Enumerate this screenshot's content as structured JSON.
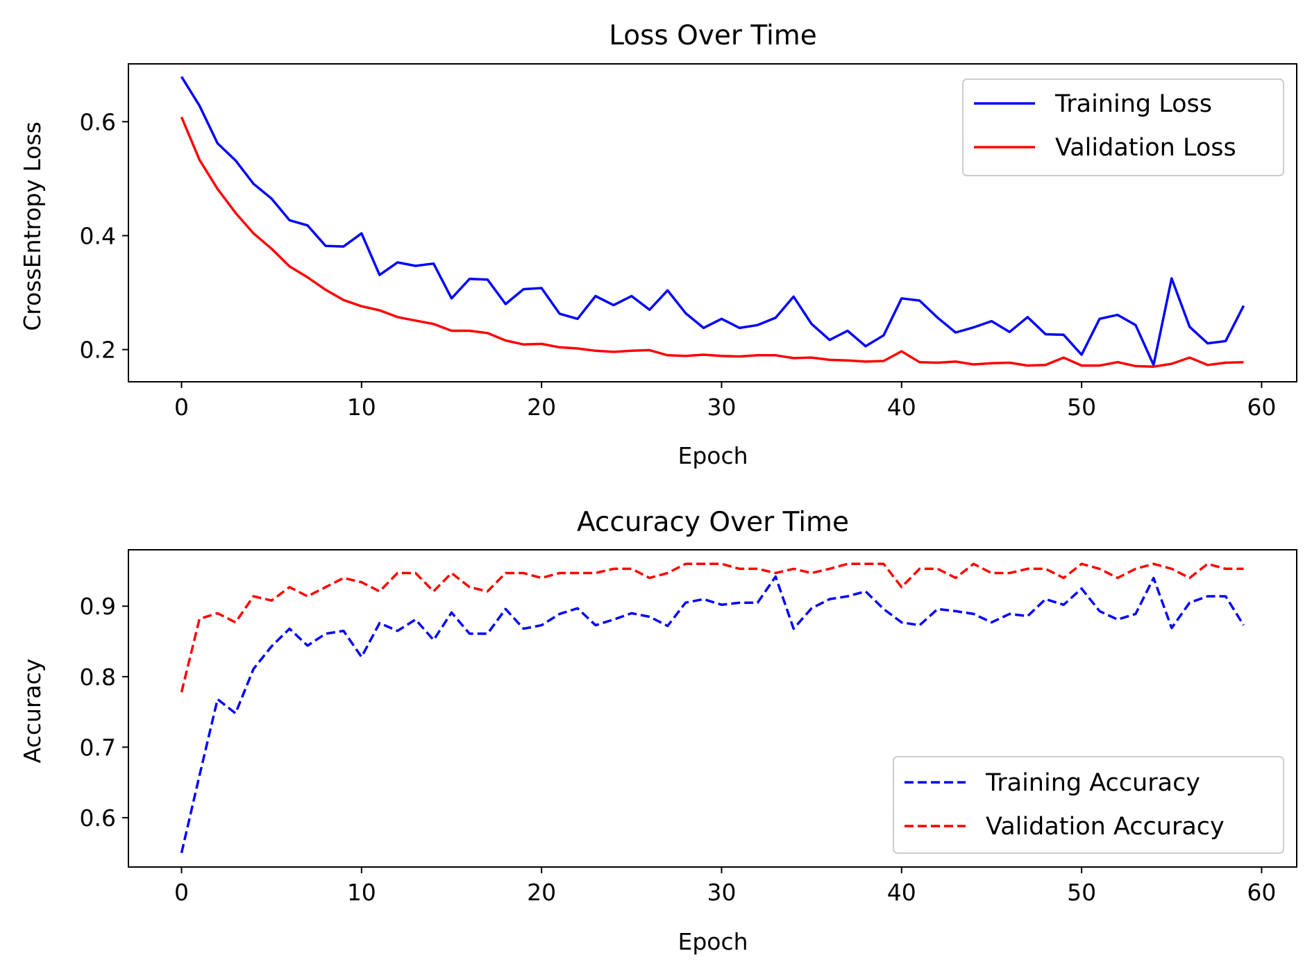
{
  "colors": {
    "training": "#0000ff",
    "validation": "#ff0000",
    "axes": "#000000",
    "legend_border": "#cccccc"
  },
  "chart_data": [
    {
      "type": "line",
      "title": "Loss Over Time",
      "xlabel": "Epoch",
      "ylabel": "CrossEntropy Loss",
      "xlim": [
        -2.95,
        61.95
      ],
      "ylim": [
        0.1435,
        0.7015
      ],
      "xticks": [
        0,
        10,
        20,
        30,
        40,
        50,
        60
      ],
      "xtick_labels": [
        "0",
        "10",
        "20",
        "30",
        "40",
        "50",
        "60"
      ],
      "yticks": [
        0.2,
        0.4,
        0.6
      ],
      "ytick_labels": [
        "0.2",
        "0.4",
        "0.6"
      ],
      "grid": false,
      "legend_position": "upper-right",
      "x": [
        0,
        1,
        2,
        3,
        4,
        5,
        6,
        7,
        8,
        9,
        10,
        11,
        12,
        13,
        14,
        15,
        16,
        17,
        18,
        19,
        20,
        21,
        22,
        23,
        24,
        25,
        26,
        27,
        28,
        29,
        30,
        31,
        32,
        33,
        34,
        35,
        36,
        37,
        38,
        39,
        40,
        41,
        42,
        43,
        44,
        45,
        46,
        47,
        48,
        49,
        50,
        51,
        52,
        53,
        54,
        55,
        56,
        57,
        58,
        59
      ],
      "series": [
        {
          "name": "Training Loss",
          "color": "#0000ff",
          "dash": "solid",
          "values": [
            0.679,
            0.628,
            0.562,
            0.532,
            0.491,
            0.465,
            0.427,
            0.418,
            0.382,
            0.381,
            0.404,
            0.331,
            0.353,
            0.347,
            0.351,
            0.29,
            0.324,
            0.323,
            0.28,
            0.306,
            0.308,
            0.263,
            0.254,
            0.294,
            0.278,
            0.294,
            0.27,
            0.304,
            0.264,
            0.238,
            0.254,
            0.238,
            0.243,
            0.256,
            0.293,
            0.245,
            0.217,
            0.233,
            0.206,
            0.225,
            0.29,
            0.286,
            0.256,
            0.23,
            0.239,
            0.25,
            0.231,
            0.257,
            0.227,
            0.226,
            0.191,
            0.254,
            0.261,
            0.243,
            0.173,
            0.325,
            0.24,
            0.211,
            0.215,
            0.277
          ]
        },
        {
          "name": "Validation Loss",
          "color": "#ff0000",
          "dash": "solid",
          "values": [
            0.608,
            0.533,
            0.482,
            0.44,
            0.404,
            0.377,
            0.346,
            0.327,
            0.305,
            0.287,
            0.276,
            0.269,
            0.257,
            0.251,
            0.245,
            0.233,
            0.233,
            0.229,
            0.216,
            0.209,
            0.21,
            0.204,
            0.202,
            0.198,
            0.196,
            0.198,
            0.199,
            0.19,
            0.189,
            0.191,
            0.189,
            0.188,
            0.19,
            0.19,
            0.185,
            0.186,
            0.182,
            0.181,
            0.179,
            0.18,
            0.197,
            0.178,
            0.177,
            0.179,
            0.174,
            0.176,
            0.177,
            0.172,
            0.173,
            0.186,
            0.172,
            0.172,
            0.178,
            0.171,
            0.17,
            0.175,
            0.186,
            0.173,
            0.177,
            0.178
          ]
        }
      ]
    },
    {
      "type": "line",
      "title": "Accuracy Over Time",
      "xlabel": "Epoch",
      "ylabel": "Accuracy",
      "xlim": [
        -2.95,
        61.95
      ],
      "ylim": [
        0.53,
        0.98
      ],
      "xticks": [
        0,
        10,
        20,
        30,
        40,
        50,
        60
      ],
      "xtick_labels": [
        "0",
        "10",
        "20",
        "30",
        "40",
        "50",
        "60"
      ],
      "yticks": [
        0.6,
        0.7,
        0.8,
        0.9
      ],
      "ytick_labels": [
        "0.6",
        "0.7",
        "0.8",
        "0.9"
      ],
      "grid": false,
      "legend_position": "lower-right",
      "x": [
        0,
        1,
        2,
        3,
        4,
        5,
        6,
        7,
        8,
        9,
        10,
        11,
        12,
        13,
        14,
        15,
        16,
        17,
        18,
        19,
        20,
        21,
        22,
        23,
        24,
        25,
        26,
        27,
        28,
        29,
        30,
        31,
        32,
        33,
        34,
        35,
        36,
        37,
        38,
        39,
        40,
        41,
        42,
        43,
        44,
        45,
        46,
        47,
        48,
        49,
        50,
        51,
        52,
        53,
        54,
        55,
        56,
        57,
        58,
        59
      ],
      "series": [
        {
          "name": "Training Accuracy",
          "color": "#0000ff",
          "dash": "dashed",
          "values": [
            0.55,
            0.66,
            0.768,
            0.748,
            0.811,
            0.843,
            0.868,
            0.844,
            0.861,
            0.865,
            0.828,
            0.876,
            0.865,
            0.881,
            0.852,
            0.891,
            0.861,
            0.861,
            0.896,
            0.868,
            0.873,
            0.889,
            0.897,
            0.873,
            0.881,
            0.89,
            0.885,
            0.872,
            0.905,
            0.91,
            0.902,
            0.905,
            0.905,
            0.942,
            0.868,
            0.897,
            0.91,
            0.914,
            0.921,
            0.896,
            0.877,
            0.873,
            0.896,
            0.893,
            0.889,
            0.877,
            0.889,
            0.886,
            0.91,
            0.902,
            0.925,
            0.893,
            0.881,
            0.889,
            0.94,
            0.869,
            0.905,
            0.914,
            0.914,
            0.873
          ]
        },
        {
          "name": "Validation Accuracy",
          "color": "#ff0000",
          "dash": "dashed",
          "values": [
            0.778,
            0.882,
            0.89,
            0.877,
            0.914,
            0.908,
            0.927,
            0.914,
            0.927,
            0.94,
            0.934,
            0.921,
            0.947,
            0.947,
            0.921,
            0.947,
            0.927,
            0.921,
            0.947,
            0.947,
            0.94,
            0.947,
            0.947,
            0.947,
            0.953,
            0.953,
            0.94,
            0.947,
            0.96,
            0.96,
            0.96,
            0.953,
            0.953,
            0.947,
            0.953,
            0.947,
            0.953,
            0.96,
            0.96,
            0.96,
            0.927,
            0.953,
            0.953,
            0.94,
            0.96,
            0.947,
            0.947,
            0.953,
            0.953,
            0.94,
            0.96,
            0.953,
            0.94,
            0.953,
            0.96,
            0.953,
            0.94,
            0.96,
            0.953,
            0.953
          ]
        }
      ]
    }
  ]
}
